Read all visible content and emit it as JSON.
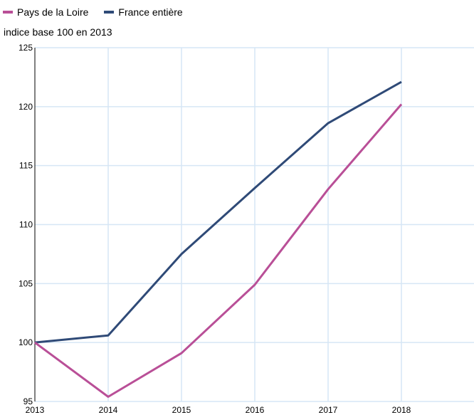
{
  "legend": {
    "series_1": "Pays de la Loire",
    "series_2": "France entière"
  },
  "colors": {
    "series_1": "#b94f97",
    "series_2": "#2f4a77",
    "grid": "#d6e6f5",
    "axis": "#000000"
  },
  "chart_data": {
    "type": "line",
    "ylabel": "indice base 100 en 2013",
    "x": [
      "2013",
      "2014",
      "2015",
      "2016",
      "2017",
      "2018"
    ],
    "ylim": [
      95,
      125
    ],
    "yticks": [
      95,
      100,
      105,
      110,
      115,
      120,
      125
    ],
    "grid": true,
    "legend_position": "top-left",
    "series": [
      {
        "name": "Pays de la Loire",
        "values": [
          100,
          95.4,
          99.1,
          104.9,
          113.0,
          120.2
        ]
      },
      {
        "name": "France entière",
        "values": [
          100,
          100.6,
          107.5,
          113.1,
          118.6,
          122.1
        ]
      }
    ]
  }
}
